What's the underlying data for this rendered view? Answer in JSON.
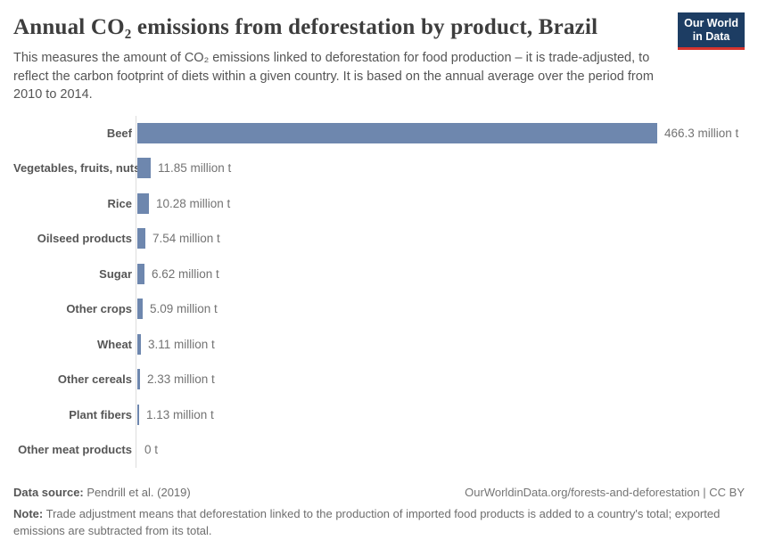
{
  "header": {
    "title": "Annual CO₂ emissions from deforestation by product, Brazil",
    "subtitle": "This measures the amount of CO₂ emissions linked to deforestation for food production – it is trade-adjusted, to reflect the carbon footprint of diets within a given country. It is based on the annual average over the period from 2010 to 2014.",
    "logo": {
      "line1": "Our World",
      "line2": "in Data"
    }
  },
  "chart_data": {
    "type": "bar",
    "orientation": "horizontal",
    "title": "Annual CO₂ emissions from deforestation by product, Brazil",
    "categories": [
      "Beef",
      "Vegetables, fruits, nuts",
      "Rice",
      "Oilseed products",
      "Sugar",
      "Other crops",
      "Wheat",
      "Other cereals",
      "Plant fibers",
      "Other meat products"
    ],
    "values": [
      466.3,
      11.85,
      10.28,
      7.54,
      6.62,
      5.09,
      3.11,
      2.33,
      1.13,
      0
    ],
    "value_labels": [
      "466.3 million t",
      "11.85 million t",
      "10.28 million t",
      "7.54 million t",
      "6.62 million t",
      "5.09 million t",
      "3.11 million t",
      "2.33 million t",
      "1.13 million t",
      "0 t"
    ],
    "unit": "million t",
    "xlim": [
      0,
      466.3
    ],
    "grid": false,
    "legend": "none",
    "bar_color": "#6e87ae",
    "axis_line_color": "#dddddd"
  },
  "footer": {
    "data_source_label": "Data source:",
    "data_source": "Pendrill et al. (2019)",
    "citation": "OurWorldinData.org/forests-and-deforestation | CC BY",
    "note_label": "Note:",
    "note": "Trade adjustment means that deforestation linked to the production of imported food products is added to a country's total; exported emissions are subtracted from its total."
  }
}
